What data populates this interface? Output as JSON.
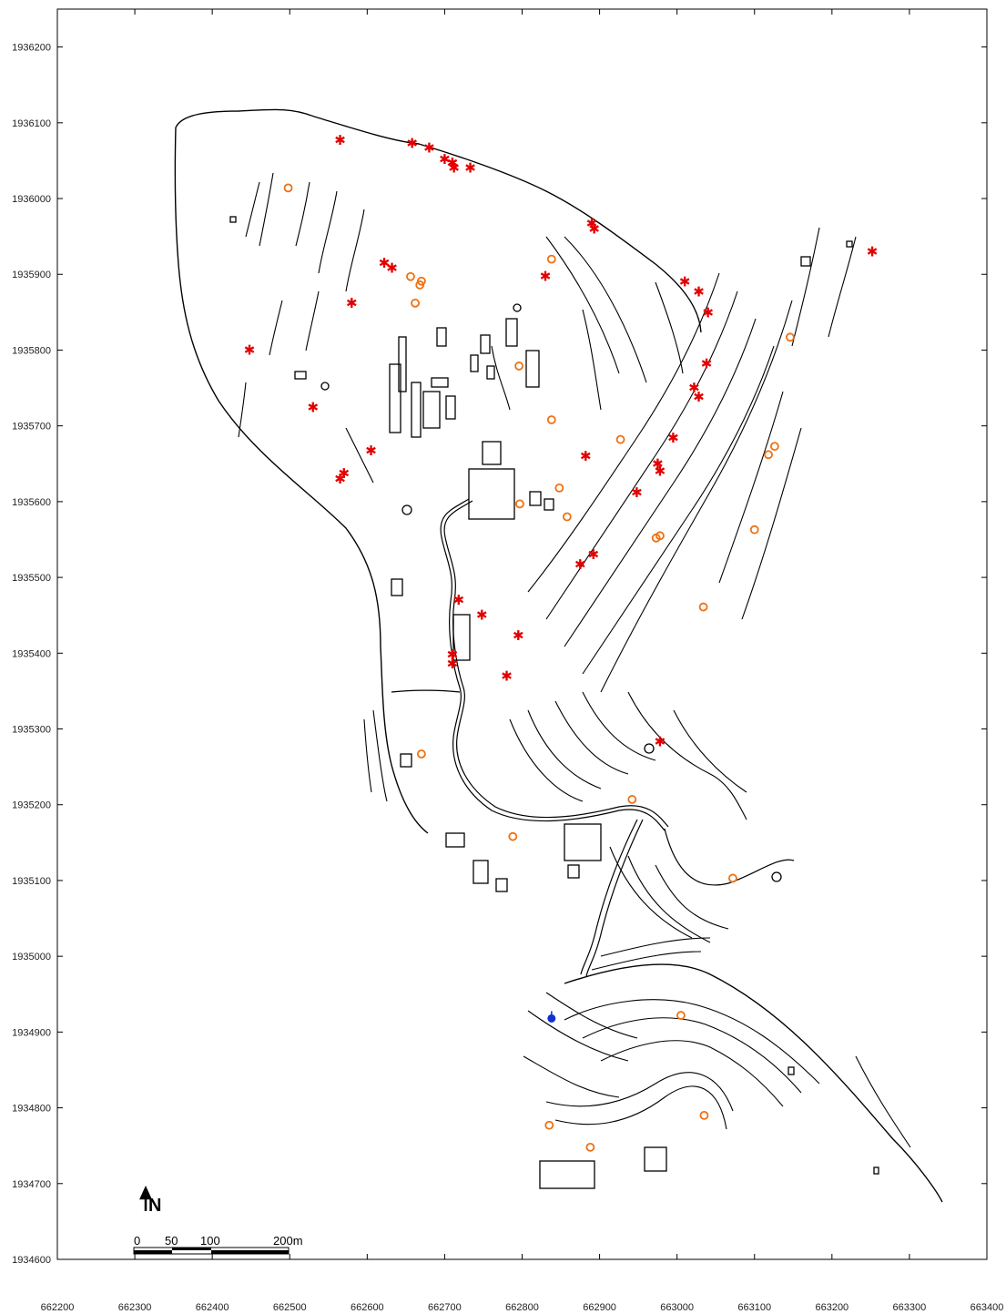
{
  "map": {
    "x_axis": {
      "min": 662200,
      "max": 663400,
      "ticks": [
        "662200",
        "662300",
        "662400",
        "662500",
        "662600",
        "662700",
        "662800",
        "662900",
        "663000",
        "663100",
        "663200",
        "663300",
        "663400"
      ]
    },
    "y_axis": {
      "min": 1934600,
      "max": 1936250,
      "ticks": [
        "1934600",
        "1934700",
        "1934800",
        "1934900",
        "1935000",
        "1935100",
        "1935200",
        "1935300",
        "1935400",
        "1935500",
        "1935600",
        "1935700",
        "1935800",
        "1935900",
        "1936000",
        "1936100",
        "1936200"
      ]
    },
    "north_arrow": {
      "label": "N"
    },
    "scale_bar": {
      "labels": [
        "0",
        "50",
        "100",
        "200m"
      ],
      "meters": [
        0,
        50,
        100,
        200
      ]
    },
    "marker_colors": {
      "star": "#e30000",
      "circle": "#f07010",
      "point": "#1030d0"
    },
    "star_markers": [
      [
        662565,
        1936077
      ],
      [
        662658,
        1936073
      ],
      [
        662680,
        1936067
      ],
      [
        662700,
        1936052
      ],
      [
        662710,
        1936047
      ],
      [
        662712,
        1936040
      ],
      [
        662733,
        1936040
      ],
      [
        662890,
        1935967
      ],
      [
        662893,
        1935960
      ],
      [
        662622,
        1935915
      ],
      [
        662632,
        1935908
      ],
      [
        662830,
        1935897
      ],
      [
        662580,
        1935862
      ],
      [
        663010,
        1935890
      ],
      [
        663028,
        1935877
      ],
      [
        663040,
        1935849
      ],
      [
        662448,
        1935800
      ],
      [
        663038,
        1935782
      ],
      [
        663022,
        1935750
      ],
      [
        663028,
        1935738
      ],
      [
        662530,
        1935724
      ],
      [
        662605,
        1935667
      ],
      [
        662995,
        1935684
      ],
      [
        662882,
        1935660
      ],
      [
        662975,
        1935650
      ],
      [
        662978,
        1935640
      ],
      [
        662570,
        1935637
      ],
      [
        662565,
        1935630
      ],
      [
        662948,
        1935612
      ],
      [
        662892,
        1935530
      ],
      [
        662875,
        1935517
      ],
      [
        662718,
        1935470
      ],
      [
        662748,
        1935450
      ],
      [
        662795,
        1935423
      ],
      [
        662710,
        1935398
      ],
      [
        662710,
        1935386
      ],
      [
        662780,
        1935370
      ],
      [
        662978,
        1935283
      ],
      [
        663252,
        1935930
      ]
    ],
    "circle_markers": [
      [
        662498,
        1936014
      ],
      [
        662838,
        1935920
      ],
      [
        662656,
        1935897
      ],
      [
        662670,
        1935891
      ],
      [
        662668,
        1935886
      ],
      [
        662662,
        1935862
      ],
      [
        663146,
        1935817
      ],
      [
        662796,
        1935779
      ],
      [
        662838,
        1935708
      ],
      [
        662927,
        1935682
      ],
      [
        663126,
        1935673
      ],
      [
        663118,
        1935662
      ],
      [
        662848,
        1935618
      ],
      [
        662797,
        1935597
      ],
      [
        662858,
        1935580
      ],
      [
        663100,
        1935563
      ],
      [
        662978,
        1935555
      ],
      [
        662973,
        1935552
      ],
      [
        663034,
        1935461
      ],
      [
        662670,
        1935267
      ],
      [
        662942,
        1935207
      ],
      [
        662788,
        1935158
      ],
      [
        663072,
        1935103
      ],
      [
        663005,
        1934922
      ],
      [
        662835,
        1934777
      ],
      [
        663035,
        1934790
      ],
      [
        662888,
        1934748
      ]
    ],
    "point_markers": [
      [
        662838,
        1934918
      ]
    ]
  }
}
